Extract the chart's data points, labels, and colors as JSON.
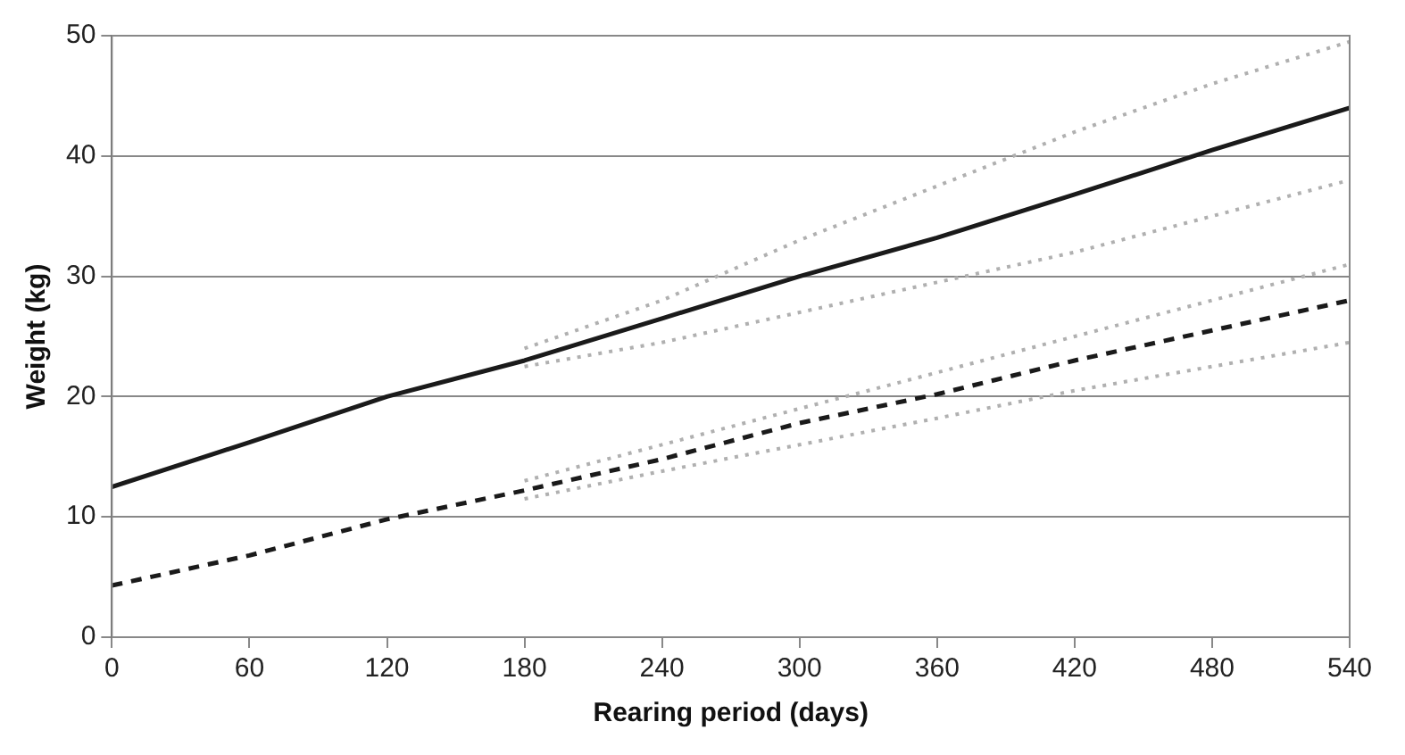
{
  "chart_data": {
    "type": "line",
    "xlabel": "Rearing period (days)",
    "ylabel": "Weight (kg)",
    "xlim": [
      0,
      540
    ],
    "xticks": [
      0,
      60,
      120,
      180,
      240,
      300,
      360,
      420,
      480,
      540
    ],
    "ylim": [
      0,
      50
    ],
    "yticks": [
      0,
      10,
      20,
      30,
      40,
      50
    ],
    "grid": "y",
    "legend": false,
    "marker": "none",
    "series": [
      {
        "color": "#1a1a1a",
        "line_style": "solid",
        "x": [
          0,
          60,
          120,
          180,
          240,
          300,
          360,
          420,
          480,
          540
        ],
        "values": [
          12.5,
          16.2,
          20,
          23,
          26.5,
          30,
          33.2,
          36.8,
          40.5,
          44
        ]
      },
      {
        "color": "#1a1a1a",
        "line_style": "dashed",
        "x": [
          0,
          60,
          120,
          180,
          240,
          300,
          360,
          420,
          480,
          540
        ],
        "values": [
          4.3,
          6.8,
          9.8,
          12.2,
          14.8,
          17.8,
          20.2,
          23,
          25.5,
          28
        ]
      },
      {
        "color": "#b0b0b0",
        "line_style": "dotted",
        "x": [
          180,
          240,
          300,
          360,
          420,
          480,
          540
        ],
        "values": [
          24,
          28,
          33,
          37.5,
          42,
          46,
          49.5
        ]
      },
      {
        "color": "#b0b0b0",
        "line_style": "dotted",
        "x": [
          180,
          240,
          300,
          360,
          420,
          480,
          540
        ],
        "values": [
          22.5,
          24.5,
          27,
          29.5,
          32,
          35,
          38
        ]
      },
      {
        "color": "#b0b0b0",
        "line_style": "dotted",
        "x": [
          180,
          240,
          300,
          360,
          420,
          480,
          540
        ],
        "values": [
          13,
          16,
          19,
          22,
          25,
          28,
          31
        ]
      },
      {
        "color": "#b0b0b0",
        "line_style": "dotted",
        "x": [
          180,
          240,
          300,
          360,
          420,
          480,
          540
        ],
        "values": [
          11.5,
          13.8,
          16,
          18.2,
          20.5,
          22.5,
          24.5
        ]
      }
    ]
  }
}
